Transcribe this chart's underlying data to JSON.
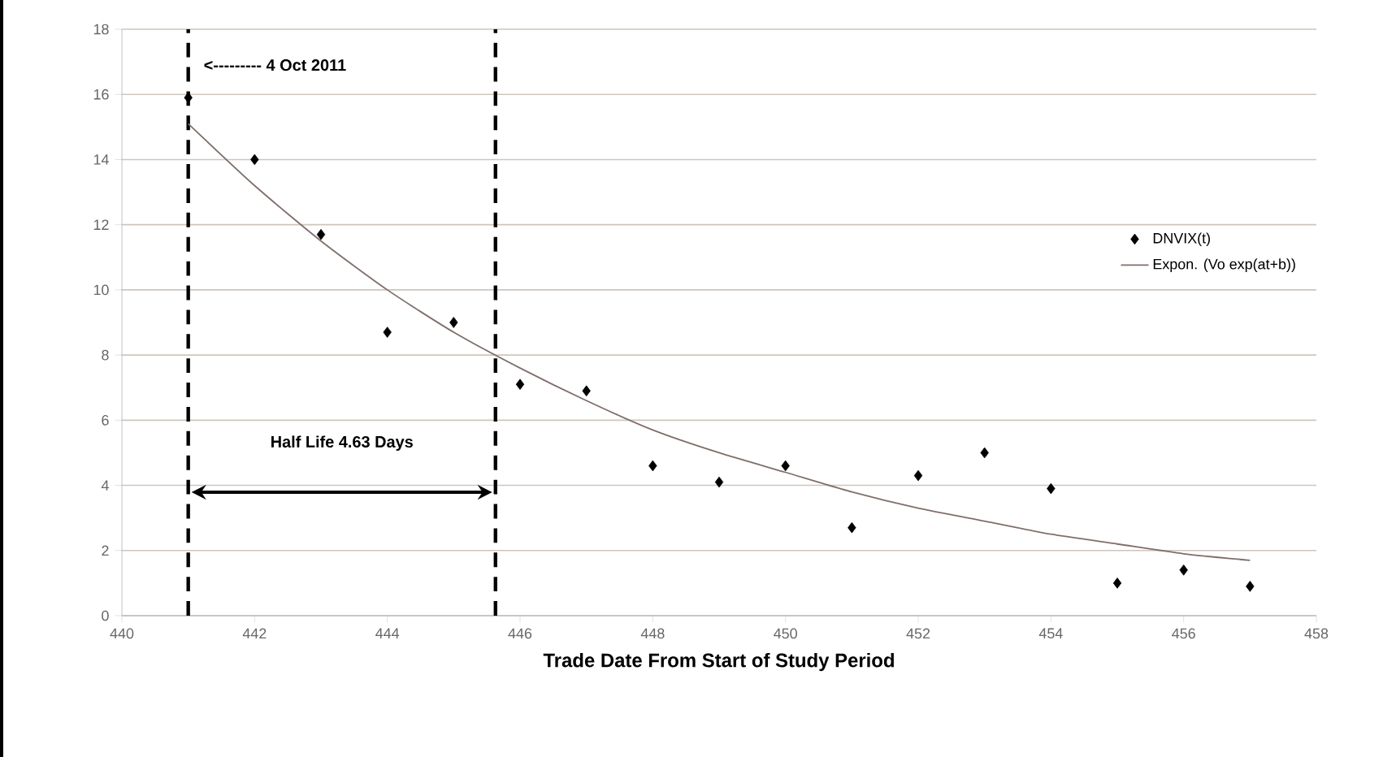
{
  "chart_data": {
    "type": "scatter",
    "xlabel": "Trade Date From Start of Study Period",
    "xlim": [
      440,
      458
    ],
    "xticks": [
      440,
      442,
      444,
      446,
      448,
      450,
      452,
      454,
      456,
      458
    ],
    "ylim": [
      0,
      18
    ],
    "yticks": [
      0,
      2,
      4,
      6,
      8,
      10,
      12,
      14,
      16,
      18
    ],
    "grid": "y",
    "legend": "right",
    "series": [
      {
        "name": "DNVIX(t)",
        "marker": "diamond",
        "color": "#000000",
        "x": [
          441,
          442,
          443,
          444,
          445,
          446,
          447,
          448,
          449,
          450,
          451,
          452,
          453,
          454,
          455,
          456,
          457
        ],
        "values": [
          15.9,
          14.0,
          11.7,
          8.7,
          9.0,
          7.1,
          6.9,
          4.6,
          4.1,
          4.6,
          2.7,
          4.3,
          5.0,
          3.9,
          1.0,
          1.4,
          0.9
        ]
      },
      {
        "name": "Expon. (Vo exp(at+b))",
        "type": "line",
        "marker": "none",
        "color": "#7f6f6a",
        "x": [
          441,
          442,
          443,
          444,
          445,
          446,
          447,
          448,
          449,
          450,
          451,
          452,
          453,
          454,
          455,
          456,
          457
        ],
        "values": [
          15.1,
          13.2,
          11.5,
          10.0,
          8.7,
          7.6,
          6.6,
          5.7,
          5.0,
          4.4,
          3.8,
          3.3,
          2.9,
          2.5,
          2.2,
          1.9,
          1.7
        ]
      }
    ],
    "ref_lines": [
      {
        "axis": "x",
        "value": 441,
        "color": "#000000",
        "line_style": "dashed"
      },
      {
        "axis": "x",
        "value": 445.63,
        "color": "#000000",
        "line_style": "dashed"
      }
    ],
    "annotations": [
      {
        "text": "<--------- 4 Oct 2011",
        "x": 441,
        "y": 16.9
      },
      "Half Life 4.63 Days"
    ]
  }
}
